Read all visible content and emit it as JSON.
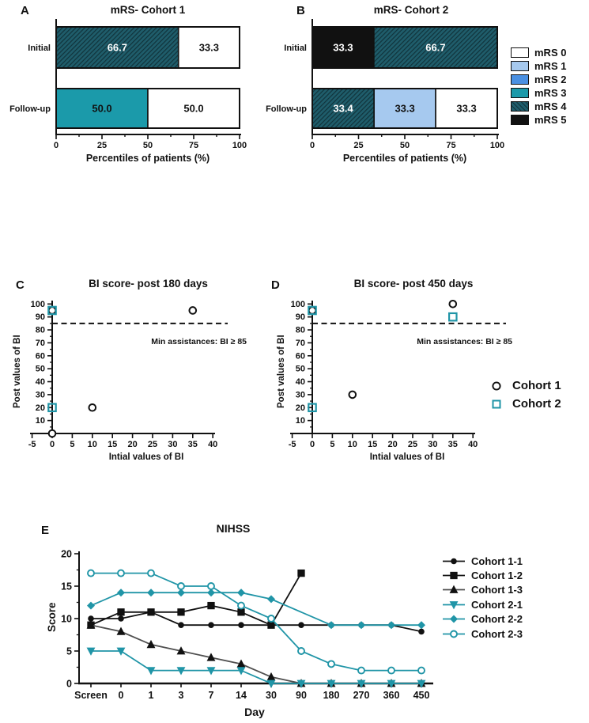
{
  "colors": {
    "mRS 0": "#ffffff",
    "mRS 1": "#a6c9ef",
    "mRS 2": "#4a90e2",
    "mRS 3": "#1b9aaa",
    "mRS 4": "#1f5d6b",
    "mRS 5": "#111111",
    "cohort1": "#111111",
    "cohort2": "#2095a7",
    "gray_line": "#4f4f4f"
  },
  "legends": {
    "mrs": [
      {
        "label": "mRS 0",
        "color_key": "mRS 0"
      },
      {
        "label": "mRS 1",
        "color_key": "mRS 1"
      },
      {
        "label": "mRS 2",
        "color_key": "mRS 2"
      },
      {
        "label": "mRS 3",
        "color_key": "mRS 3"
      },
      {
        "label": "mRS 4",
        "color_key": "mRS 4"
      },
      {
        "label": "mRS 5",
        "color_key": "mRS 5"
      }
    ],
    "cohort": [
      {
        "label": "Cohort 1",
        "marker": "circle",
        "color_key": "cohort1"
      },
      {
        "label": "Cohort 2",
        "marker": "square",
        "color_key": "cohort2"
      }
    ]
  },
  "chart_data": [
    {
      "id": "A",
      "type": "bar",
      "title": "mRS- Cohort 1",
      "xlabel": "Percentiles of patients (%)",
      "xlim": [
        0,
        100
      ],
      "xticks": [
        0,
        25,
        50,
        75,
        100
      ],
      "categories": [
        "Initial",
        "Follow-up"
      ],
      "bars": [
        {
          "category": "Initial",
          "segments": [
            {
              "mrs": "mRS 4",
              "value": 66.7,
              "display": "66.7"
            },
            {
              "mrs": "mRS 0",
              "value": 33.3,
              "display": "33.3"
            }
          ]
        },
        {
          "category": "Follow-up",
          "segments": [
            {
              "mrs": "mRS 3",
              "value": 50.0,
              "display": "50.0"
            },
            {
              "mrs": "mRS 0",
              "value": 50.0,
              "display": "50.0"
            }
          ]
        }
      ]
    },
    {
      "id": "B",
      "type": "bar",
      "title": "mRS- Cohort 2",
      "xlabel": "Percentiles of patients (%)",
      "xlim": [
        0,
        100
      ],
      "xticks": [
        0,
        25,
        50,
        75,
        100
      ],
      "categories": [
        "Initial",
        "Follow-up"
      ],
      "bars": [
        {
          "category": "Initial",
          "segments": [
            {
              "mrs": "mRS 5",
              "value": 33.3,
              "display": "33.3"
            },
            {
              "mrs": "mRS 4",
              "value": 66.7,
              "display": "66.7"
            }
          ]
        },
        {
          "category": "Follow-up",
          "segments": [
            {
              "mrs": "mRS 4",
              "value": 33.4,
              "display": "33.4"
            },
            {
              "mrs": "mRS 1",
              "value": 33.3,
              "display": "33.3"
            },
            {
              "mrs": "mRS 0",
              "value": 33.3,
              "display": "33.3"
            }
          ]
        }
      ]
    },
    {
      "id": "C",
      "type": "scatter",
      "title": "BI score- post 180 days",
      "xlabel": "Intial values of BI",
      "ylabel": "Post values of BI",
      "xlim": [
        -5,
        40
      ],
      "ylim": [
        0,
        100
      ],
      "xticks": [
        -5,
        0,
        5,
        10,
        15,
        20,
        25,
        30,
        35,
        40
      ],
      "yticks": [
        10,
        20,
        30,
        40,
        50,
        60,
        70,
        80,
        90,
        100
      ],
      "threshold": {
        "y": 85,
        "label": "Min assistances: BI ≥ 85"
      },
      "series": [
        {
          "name": "Cohort 1",
          "marker": "circle",
          "color_key": "cohort1",
          "points": [
            [
              0,
              0
            ],
            [
              0,
              95
            ],
            [
              10,
              20
            ],
            [
              35,
              95
            ]
          ]
        },
        {
          "name": "Cohort 2",
          "marker": "square",
          "color_key": "cohort2",
          "points": [
            [
              0,
              20
            ],
            [
              0,
              95
            ]
          ]
        }
      ]
    },
    {
      "id": "D",
      "type": "scatter",
      "title": "BI score- post 450 days",
      "xlabel": "Intial values of BI",
      "ylabel": "Post values of BI",
      "xlim": [
        -5,
        40
      ],
      "ylim": [
        0,
        100
      ],
      "xticks": [
        -5,
        0,
        5,
        10,
        15,
        20,
        25,
        30,
        35,
        40
      ],
      "yticks": [
        10,
        20,
        30,
        40,
        50,
        60,
        70,
        80,
        90,
        100
      ],
      "threshold": {
        "y": 85,
        "label": "Min assistances: BI ≥ 85"
      },
      "series": [
        {
          "name": "Cohort 1",
          "marker": "circle",
          "color_key": "cohort1",
          "points": [
            [
              0,
              95
            ],
            [
              10,
              30
            ],
            [
              35,
              100
            ]
          ]
        },
        {
          "name": "Cohort 2",
          "marker": "square",
          "color_key": "cohort2",
          "points": [
            [
              0,
              20
            ],
            [
              0,
              95
            ],
            [
              35,
              90
            ]
          ]
        }
      ]
    },
    {
      "id": "E",
      "type": "line",
      "title": "NIHSS",
      "xlabel": "Day",
      "ylabel": "Score",
      "ylim": [
        0,
        20
      ],
      "yticks": [
        0,
        5,
        10,
        15,
        20
      ],
      "categories": [
        "Screen",
        "0",
        "1",
        "3",
        "7",
        "14",
        "30",
        "90",
        "180",
        "270",
        "360",
        "450"
      ],
      "series": [
        {
          "name": "Cohort 1-1",
          "marker": "circle",
          "open": false,
          "color_key": "cohort1",
          "values": [
            10,
            10,
            11,
            9,
            9,
            9,
            9,
            9,
            9,
            9,
            9,
            8
          ]
        },
        {
          "name": "Cohort 1-2",
          "marker": "square",
          "open": false,
          "color_key": "cohort1",
          "values": [
            9,
            11,
            11,
            11,
            12,
            11,
            9,
            17,
            null,
            null,
            null,
            null
          ]
        },
        {
          "name": "Cohort 1-3",
          "marker": "triangle-up",
          "open": false,
          "color_key": "cohort1",
          "line_color": "#4f4f4f",
          "values": [
            9,
            8,
            6,
            5,
            4,
            3,
            1,
            0,
            0,
            0,
            0,
            0
          ]
        },
        {
          "name": "Cohort 2-1",
          "marker": "triangle-down",
          "open": false,
          "color_key": "cohort2",
          "values": [
            5,
            5,
            2,
            2,
            2,
            2,
            0,
            0,
            0,
            0,
            0,
            0
          ]
        },
        {
          "name": "Cohort 2-2",
          "marker": "diamond",
          "open": false,
          "color_key": "cohort2",
          "values": [
            12,
            14,
            14,
            14,
            14,
            14,
            13,
            null,
            9,
            9,
            9,
            9
          ]
        },
        {
          "name": "Cohort 2-3",
          "marker": "circle",
          "open": true,
          "color_key": "cohort2",
          "values": [
            17,
            17,
            17,
            15,
            15,
            12,
            10,
            5,
            3,
            2,
            2,
            2
          ]
        }
      ]
    }
  ]
}
